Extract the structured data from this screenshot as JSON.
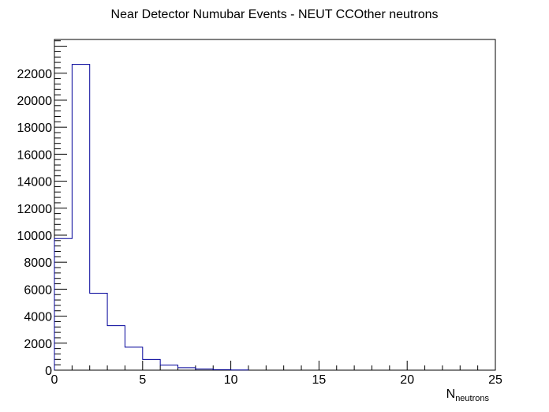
{
  "chart_data": {
    "type": "bar",
    "title": "Near Detector Numubar Events - NEUT CCOther neutrons",
    "xlabel_main": "N",
    "xlabel_sub": "neutrons",
    "ylabel": "",
    "xlim": [
      0,
      25
    ],
    "ylim": [
      0,
      24500
    ],
    "x_ticks": [
      0,
      5,
      10,
      15,
      20,
      25
    ],
    "y_ticks": [
      0,
      2000,
      4000,
      6000,
      8000,
      10000,
      12000,
      14000,
      16000,
      18000,
      20000,
      22000
    ],
    "bin_width": 1,
    "bins": [
      {
        "x": 0,
        "value": 9750
      },
      {
        "x": 1,
        "value": 22650
      },
      {
        "x": 2,
        "value": 5700
      },
      {
        "x": 3,
        "value": 3300
      },
      {
        "x": 4,
        "value": 1700
      },
      {
        "x": 5,
        "value": 800
      },
      {
        "x": 6,
        "value": 380
      },
      {
        "x": 7,
        "value": 180
      },
      {
        "x": 8,
        "value": 90
      },
      {
        "x": 9,
        "value": 40
      },
      {
        "x": 10,
        "value": 15
      }
    ],
    "line_color": "#000099",
    "frame_color": "#000000",
    "grid": false,
    "legend": "none"
  }
}
